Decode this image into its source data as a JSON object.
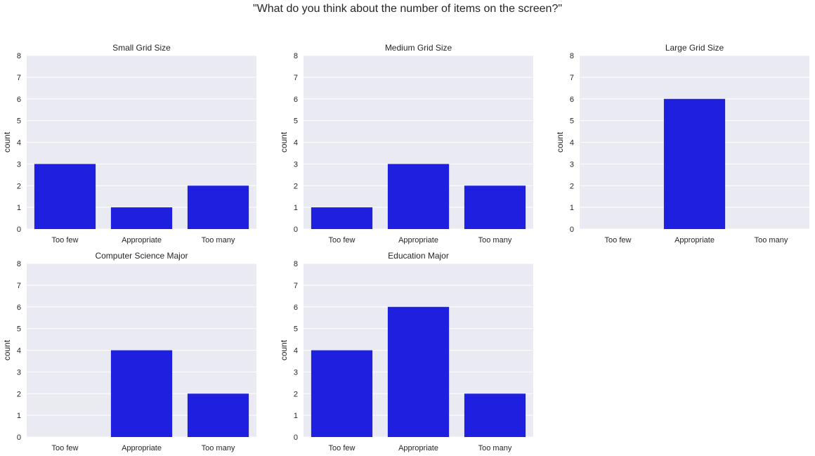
{
  "figure": {
    "suptitle": "\"What do you think about the number of items on the screen?\""
  },
  "chart_data": [
    {
      "type": "bar",
      "title": "Small Grid Size",
      "categories": [
        "Too few",
        "Appropriate",
        "Too many"
      ],
      "values": [
        3,
        1,
        2
      ],
      "xlabel": "",
      "ylabel": "count",
      "ylim": [
        0,
        8
      ],
      "yticks": [
        "0",
        "1",
        "2",
        "3",
        "4",
        "5",
        "6",
        "7",
        "8"
      ],
      "grid": true,
      "bar_color": "#1f1fe0",
      "background_color": "#eaeaf2"
    },
    {
      "type": "bar",
      "title": "Medium Grid Size",
      "categories": [
        "Too few",
        "Appropriate",
        "Too many"
      ],
      "values": [
        1,
        3,
        2
      ],
      "xlabel": "",
      "ylabel": "count",
      "ylim": [
        0,
        8
      ],
      "yticks": [
        "0",
        "1",
        "2",
        "3",
        "4",
        "5",
        "6",
        "7",
        "8"
      ],
      "grid": true,
      "bar_color": "#1f1fe0",
      "background_color": "#eaeaf2"
    },
    {
      "type": "bar",
      "title": "Large Grid Size",
      "categories": [
        "Too few",
        "Appropriate",
        "Too many"
      ],
      "values": [
        0,
        6,
        0
      ],
      "xlabel": "",
      "ylabel": "count",
      "ylim": [
        0,
        8
      ],
      "yticks": [
        "0",
        "1",
        "2",
        "3",
        "4",
        "5",
        "6",
        "7",
        "8"
      ],
      "grid": true,
      "bar_color": "#1f1fe0",
      "background_color": "#eaeaf2"
    },
    {
      "type": "bar",
      "title": "Computer Science Major",
      "categories": [
        "Too few",
        "Appropriate",
        "Too many"
      ],
      "values": [
        0,
        4,
        2
      ],
      "xlabel": "",
      "ylabel": "count",
      "ylim": [
        0,
        8
      ],
      "yticks": [
        "0",
        "1",
        "2",
        "3",
        "4",
        "5",
        "6",
        "7",
        "8"
      ],
      "grid": true,
      "bar_color": "#1f1fe0",
      "background_color": "#eaeaf2"
    },
    {
      "type": "bar",
      "title": "Education Major",
      "categories": [
        "Too few",
        "Appropriate",
        "Too many"
      ],
      "values": [
        4,
        6,
        2
      ],
      "xlabel": "",
      "ylabel": "count",
      "ylim": [
        0,
        8
      ],
      "yticks": [
        "0",
        "1",
        "2",
        "3",
        "4",
        "5",
        "6",
        "7",
        "8"
      ],
      "grid": true,
      "bar_color": "#1f1fe0",
      "background_color": "#eaeaf2"
    }
  ]
}
